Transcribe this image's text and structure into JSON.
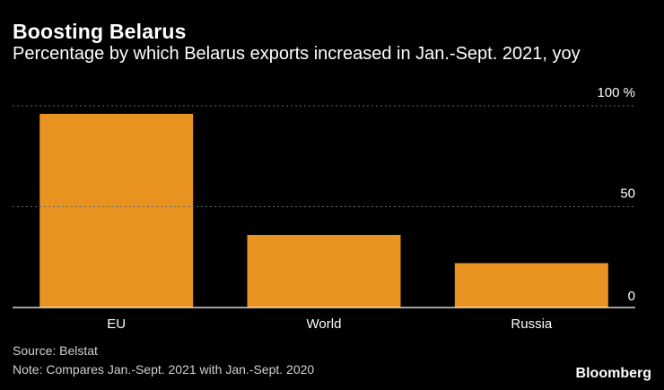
{
  "header": {
    "title": "Boosting Belarus",
    "subtitle": "Percentage by which Belarus exports increased in Jan.-Sept. 2021, yoy"
  },
  "footer": {
    "source": "Source: Belstat",
    "note": "Note: Compares Jan.-Sept. 2021 with Jan.-Sept. 2020",
    "logo": "Bloomberg"
  },
  "colors": {
    "bar": "#e8931f",
    "grid": "#666666",
    "text": "#ffffff",
    "axis": "#ffffff"
  },
  "chart_data": {
    "type": "bar",
    "title": "Boosting Belarus",
    "subtitle": "Percentage by which Belarus exports increased in Jan.-Sept. 2021, yoy",
    "categories": [
      "EU",
      "World",
      "Russia"
    ],
    "values": [
      96,
      36,
      22
    ],
    "ylim": [
      0,
      100
    ],
    "yticks": [
      0,
      50,
      100
    ],
    "ytick_labels": [
      "0",
      "50",
      "100 %"
    ],
    "xlabel": "",
    "ylabel": "",
    "grid": true
  }
}
